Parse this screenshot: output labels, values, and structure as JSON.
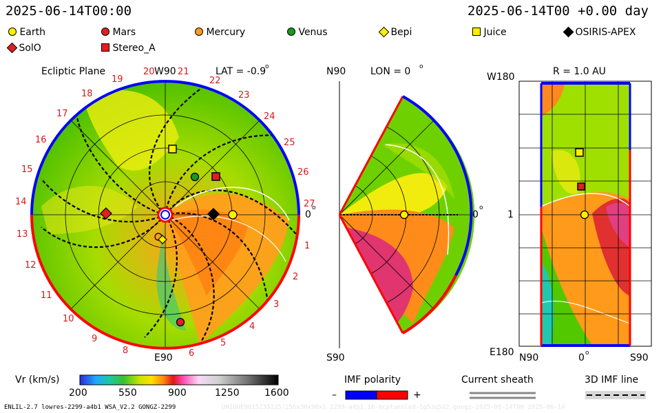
{
  "header": {
    "left": "2025-06-14T00:00",
    "right": "2025-06-14T00 +0.00 day"
  },
  "legend": [
    {
      "name": "Earth",
      "shape": "circle",
      "color": "#ffee00"
    },
    {
      "name": "Mars",
      "shape": "circle",
      "color": "#e02020"
    },
    {
      "name": "Mercury",
      "shape": "circle",
      "color": "#ff9a22"
    },
    {
      "name": "Venus",
      "shape": "circle",
      "color": "#1a9a1a"
    },
    {
      "name": "Bepi",
      "shape": "diamond",
      "color": "#ffee00"
    },
    {
      "name": "Juice",
      "shape": "square",
      "color": "#ffee00"
    },
    {
      "name": "OSIRIS-APEX",
      "shape": "diamond",
      "color": "#000000"
    },
    {
      "name": "SolO",
      "shape": "diamond",
      "color": "#e02020"
    },
    {
      "name": "Stereo_A",
      "shape": "square",
      "color": "#e02020"
    }
  ],
  "panels": {
    "ecliptic": {
      "title": "Ecliptic Plane",
      "top": "W90",
      "bottom": "E90",
      "right": "0",
      "lat": "LAT = -0.9",
      "sectors": [
        "1",
        "2",
        "3",
        "4",
        "5",
        "6",
        "8",
        "9",
        "10",
        "11",
        "12",
        "13",
        "14",
        "15",
        "16",
        "17",
        "18",
        "19",
        "20",
        "21",
        "22",
        "23",
        "24",
        "25",
        "26",
        "27"
      ]
    },
    "meridional": {
      "lon": "LON = 0",
      "top": "N90",
      "bottom": "S90",
      "right": "0"
    },
    "radial": {
      "r": "R = 1.0 AU",
      "top": "W180",
      "mid": "1",
      "bottom": "E180",
      "xticks": [
        "N90",
        "0",
        "S90"
      ]
    }
  },
  "colorbar": {
    "title": "Vr (km/s)",
    "ticks": [
      "200",
      "550",
      "900",
      "1250",
      "1600"
    ]
  },
  "imf": {
    "title": "IMF polarity",
    "minus": "–",
    "plus": "+",
    "colors": {
      "negative": "#0000ff",
      "positive": "#ff0000"
    }
  },
  "sheath": {
    "title": "Current sheath"
  },
  "imfline": {
    "title": "3D IMF line"
  },
  "footer": {
    "left": "ENLIL-2.7 lowres-2299-a4b1 WSA_V2.2 GONGZ-2299",
    "right": "UNIQUE0615235225/256x30x90x1 2299-a4b1.16-mcptunnled-1g53q5d2.gongz-2025-06-14T00 2025-06-14"
  },
  "chart_data": {
    "type": "heatmap",
    "quantity": "Vr",
    "units": "km/s",
    "colorbar_range": [
      200,
      1600
    ],
    "colorbar_ticks": [
      200,
      550,
      900,
      1250,
      1600
    ],
    "time": "2025-06-14T00:00",
    "offset_days": 0.0,
    "panels": [
      "Ecliptic Plane",
      "LON = 0",
      "R = 1.0 AU"
    ],
    "bodies": [
      {
        "name": "Earth"
      },
      {
        "name": "Mars"
      },
      {
        "name": "Mercury"
      },
      {
        "name": "Venus"
      },
      {
        "name": "Bepi"
      },
      {
        "name": "Juice"
      },
      {
        "name": "OSIRIS-APEX"
      },
      {
        "name": "SolO"
      },
      {
        "name": "Stereo_A"
      }
    ]
  }
}
